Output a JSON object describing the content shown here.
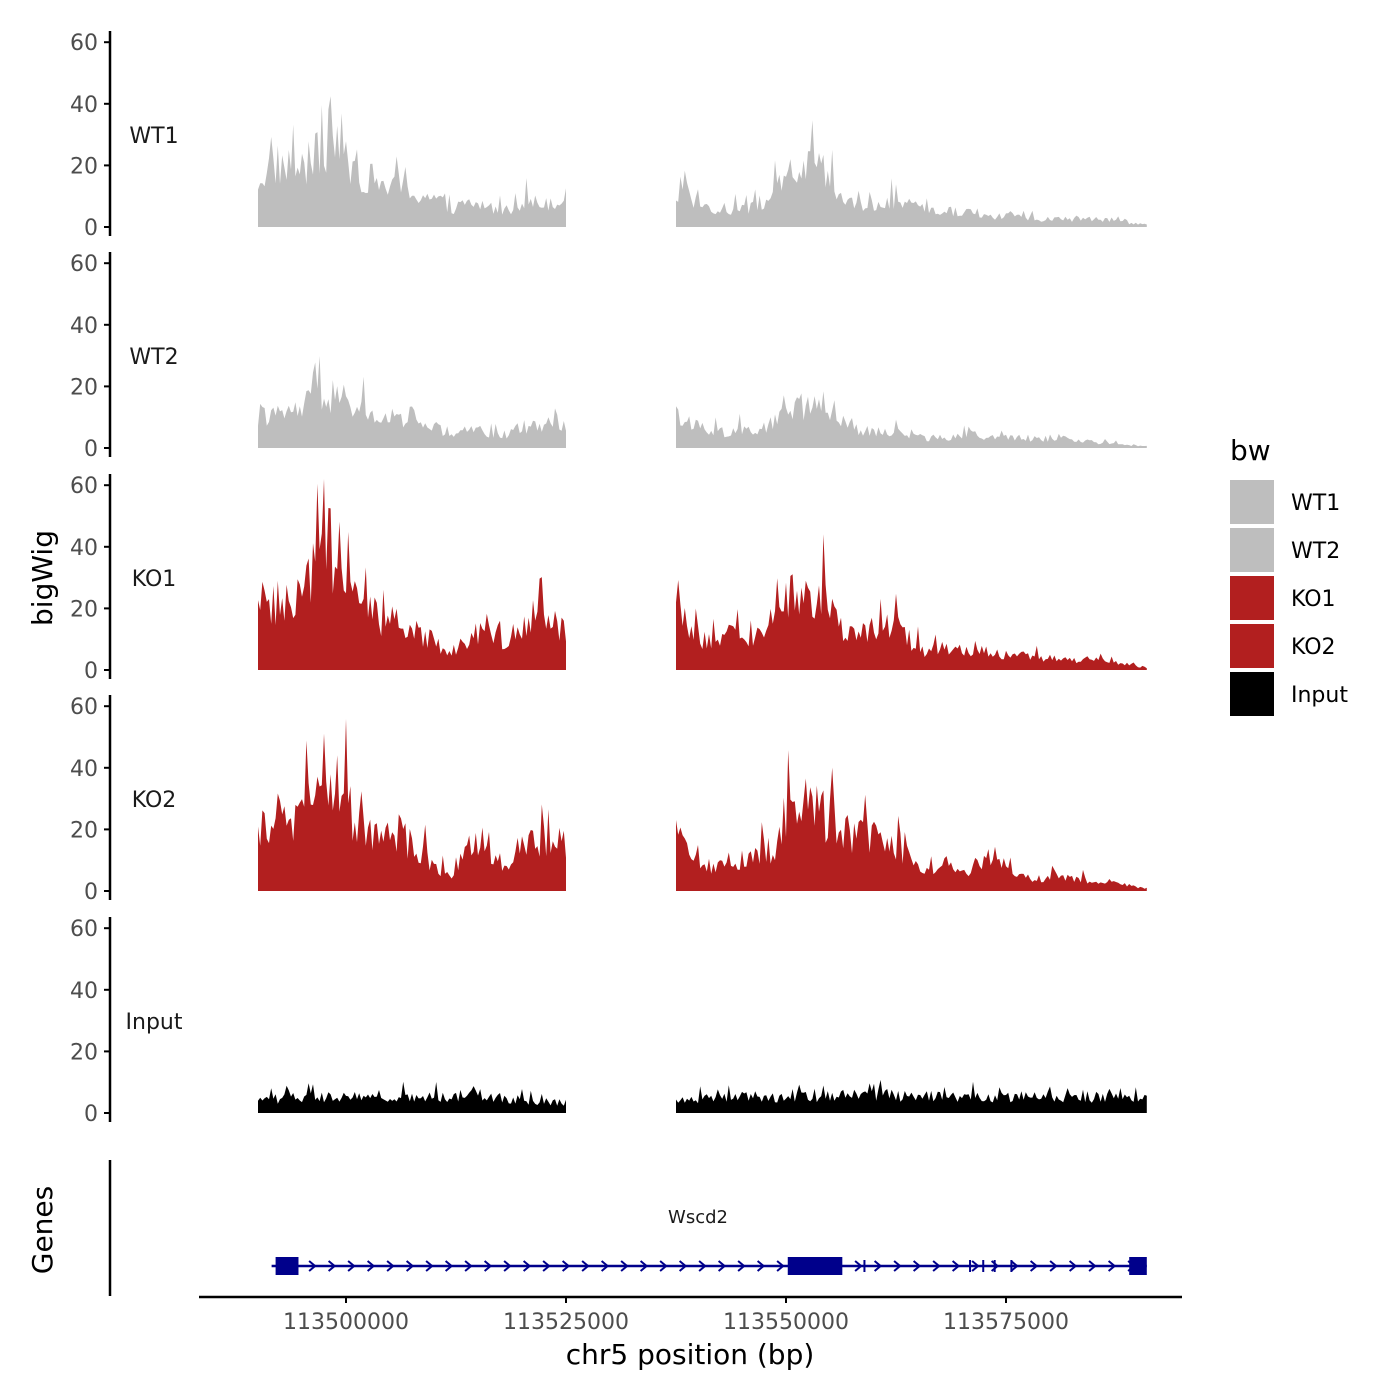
{
  "chart_data": {
    "type": "area",
    "ylabel": "bigWig",
    "xlabel": "chr5 position (bp)",
    "gene_track_label": "Genes",
    "ylim": [
      0,
      60
    ],
    "yticks": [
      0,
      20,
      40,
      60
    ],
    "xlim": [
      113485000,
      113594000
    ],
    "xticks": [
      113500000,
      113525000,
      113550000,
      113575000
    ],
    "xtick_labels": [
      "113500000",
      "113525000",
      "113550000",
      "113575000"
    ],
    "regions": [
      [
        113490000,
        113525000
      ],
      [
        113537500,
        113591000
      ]
    ],
    "bin_size_bp": 250,
    "series": [
      {
        "name": "WT1",
        "color": "#bebebe",
        "anchors": [
          {
            "x": 113490000,
            "y": 18
          },
          {
            "x": 113492000,
            "y": 24
          },
          {
            "x": 113495000,
            "y": 22
          },
          {
            "x": 113497000,
            "y": 28
          },
          {
            "x": 113499000,
            "y": 27
          },
          {
            "x": 113501000,
            "y": 22
          },
          {
            "x": 113503000,
            "y": 18
          },
          {
            "x": 113506000,
            "y": 14
          },
          {
            "x": 113509000,
            "y": 12
          },
          {
            "x": 113512000,
            "y": 7
          },
          {
            "x": 113514000,
            "y": 9
          },
          {
            "x": 113516000,
            "y": 8
          },
          {
            "x": 113518000,
            "y": 6
          },
          {
            "x": 113520000,
            "y": 10
          },
          {
            "x": 113522000,
            "y": 9
          },
          {
            "x": 113525000,
            "y": 11
          },
          {
            "x": 113537500,
            "y": 14
          },
          {
            "x": 113539500,
            "y": 9
          },
          {
            "x": 113541500,
            "y": 5
          },
          {
            "x": 113544000,
            "y": 7
          },
          {
            "x": 113546000,
            "y": 7
          },
          {
            "x": 113548500,
            "y": 12
          },
          {
            "x": 113550500,
            "y": 20
          },
          {
            "x": 113552500,
            "y": 23
          },
          {
            "x": 113554500,
            "y": 20
          },
          {
            "x": 113556500,
            "y": 9
          },
          {
            "x": 113559000,
            "y": 7
          },
          {
            "x": 113561500,
            "y": 10
          },
          {
            "x": 113564000,
            "y": 7
          },
          {
            "x": 113567000,
            "y": 6
          },
          {
            "x": 113570000,
            "y": 6
          },
          {
            "x": 113573000,
            "y": 4
          },
          {
            "x": 113576000,
            "y": 4
          },
          {
            "x": 113579000,
            "y": 3
          },
          {
            "x": 113582000,
            "y": 3
          },
          {
            "x": 113585000,
            "y": 3
          },
          {
            "x": 113588000,
            "y": 2
          },
          {
            "x": 113591000,
            "y": 1
          }
        ]
      },
      {
        "name": "WT2",
        "color": "#bebebe",
        "anchors": [
          {
            "x": 113490000,
            "y": 13
          },
          {
            "x": 113492000,
            "y": 12
          },
          {
            "x": 113494000,
            "y": 14
          },
          {
            "x": 113496000,
            "y": 17
          },
          {
            "x": 113498000,
            "y": 20
          },
          {
            "x": 113500000,
            "y": 18
          },
          {
            "x": 113502000,
            "y": 14
          },
          {
            "x": 113505000,
            "y": 10
          },
          {
            "x": 113508000,
            "y": 10
          },
          {
            "x": 113510000,
            "y": 8
          },
          {
            "x": 113512000,
            "y": 4
          },
          {
            "x": 113514000,
            "y": 7
          },
          {
            "x": 113516000,
            "y": 6
          },
          {
            "x": 113518000,
            "y": 5
          },
          {
            "x": 113520000,
            "y": 8
          },
          {
            "x": 113522000,
            "y": 9
          },
          {
            "x": 113525000,
            "y": 10
          },
          {
            "x": 113537500,
            "y": 12
          },
          {
            "x": 113539500,
            "y": 9
          },
          {
            "x": 113542000,
            "y": 6
          },
          {
            "x": 113545000,
            "y": 7
          },
          {
            "x": 113548500,
            "y": 9
          },
          {
            "x": 113550500,
            "y": 14
          },
          {
            "x": 113552500,
            "y": 17
          },
          {
            "x": 113554500,
            "y": 14
          },
          {
            "x": 113556500,
            "y": 8
          },
          {
            "x": 113559000,
            "y": 6
          },
          {
            "x": 113562000,
            "y": 6
          },
          {
            "x": 113565000,
            "y": 4
          },
          {
            "x": 113568000,
            "y": 4
          },
          {
            "x": 113571000,
            "y": 5
          },
          {
            "x": 113574000,
            "y": 4
          },
          {
            "x": 113577000,
            "y": 4
          },
          {
            "x": 113580000,
            "y": 3
          },
          {
            "x": 113583000,
            "y": 3
          },
          {
            "x": 113586000,
            "y": 2
          },
          {
            "x": 113589000,
            "y": 1
          },
          {
            "x": 113591000,
            "y": 1
          }
        ]
      },
      {
        "name": "KO1",
        "color": "#b21f1f",
        "anchors": [
          {
            "x": 113490000,
            "y": 22
          },
          {
            "x": 113492000,
            "y": 26
          },
          {
            "x": 113494000,
            "y": 23
          },
          {
            "x": 113496000,
            "y": 34
          },
          {
            "x": 113497500,
            "y": 46
          },
          {
            "x": 113499000,
            "y": 42
          },
          {
            "x": 113500500,
            "y": 30
          },
          {
            "x": 113502000,
            "y": 22
          },
          {
            "x": 113504000,
            "y": 20
          },
          {
            "x": 113506000,
            "y": 17
          },
          {
            "x": 113508000,
            "y": 14
          },
          {
            "x": 113510000,
            "y": 11
          },
          {
            "x": 113512000,
            "y": 7
          },
          {
            "x": 113514000,
            "y": 12
          },
          {
            "x": 113516000,
            "y": 18
          },
          {
            "x": 113518000,
            "y": 10
          },
          {
            "x": 113520000,
            "y": 17
          },
          {
            "x": 113522000,
            "y": 19
          },
          {
            "x": 113525000,
            "y": 16
          },
          {
            "x": 113537500,
            "y": 21
          },
          {
            "x": 113539500,
            "y": 14
          },
          {
            "x": 113541500,
            "y": 10
          },
          {
            "x": 113543500,
            "y": 13
          },
          {
            "x": 113546000,
            "y": 12
          },
          {
            "x": 113548500,
            "y": 15
          },
          {
            "x": 113550500,
            "y": 28
          },
          {
            "x": 113552500,
            "y": 30
          },
          {
            "x": 113554500,
            "y": 28
          },
          {
            "x": 113556500,
            "y": 13
          },
          {
            "x": 113558500,
            "y": 15
          },
          {
            "x": 113561000,
            "y": 17
          },
          {
            "x": 113563000,
            "y": 14
          },
          {
            "x": 113566000,
            "y": 7
          },
          {
            "x": 113569000,
            "y": 8
          },
          {
            "x": 113572000,
            "y": 7
          },
          {
            "x": 113575000,
            "y": 6
          },
          {
            "x": 113578000,
            "y": 5
          },
          {
            "x": 113581000,
            "y": 4
          },
          {
            "x": 113584000,
            "y": 4
          },
          {
            "x": 113587000,
            "y": 3
          },
          {
            "x": 113591000,
            "y": 1
          }
        ]
      },
      {
        "name": "KO2",
        "color": "#b21f1f",
        "anchors": [
          {
            "x": 113490000,
            "y": 23
          },
          {
            "x": 113492000,
            "y": 28
          },
          {
            "x": 113494000,
            "y": 26
          },
          {
            "x": 113496000,
            "y": 33
          },
          {
            "x": 113497500,
            "y": 48
          },
          {
            "x": 113499000,
            "y": 40
          },
          {
            "x": 113500500,
            "y": 30
          },
          {
            "x": 113502000,
            "y": 24
          },
          {
            "x": 113504000,
            "y": 20
          },
          {
            "x": 113506000,
            "y": 22
          },
          {
            "x": 113508000,
            "y": 16
          },
          {
            "x": 113510000,
            "y": 10
          },
          {
            "x": 113512000,
            "y": 6
          },
          {
            "x": 113514000,
            "y": 16
          },
          {
            "x": 113516000,
            "y": 18
          },
          {
            "x": 113518000,
            "y": 10
          },
          {
            "x": 113520000,
            "y": 16
          },
          {
            "x": 113522000,
            "y": 19
          },
          {
            "x": 113525000,
            "y": 18
          },
          {
            "x": 113537500,
            "y": 24
          },
          {
            "x": 113539500,
            "y": 14
          },
          {
            "x": 113541500,
            "y": 10
          },
          {
            "x": 113544000,
            "y": 12
          },
          {
            "x": 113546500,
            "y": 13
          },
          {
            "x": 113548500,
            "y": 16
          },
          {
            "x": 113550500,
            "y": 30
          },
          {
            "x": 113552500,
            "y": 33
          },
          {
            "x": 113554500,
            "y": 28
          },
          {
            "x": 113556500,
            "y": 22
          },
          {
            "x": 113558500,
            "y": 21
          },
          {
            "x": 113561000,
            "y": 20
          },
          {
            "x": 113563000,
            "y": 17
          },
          {
            "x": 113565500,
            "y": 7
          },
          {
            "x": 113568000,
            "y": 12
          },
          {
            "x": 113570500,
            "y": 8
          },
          {
            "x": 113573000,
            "y": 12
          },
          {
            "x": 113575000,
            "y": 8
          },
          {
            "x": 113578000,
            "y": 5
          },
          {
            "x": 113581000,
            "y": 5
          },
          {
            "x": 113584000,
            "y": 4
          },
          {
            "x": 113587000,
            "y": 3
          },
          {
            "x": 113591000,
            "y": 1
          }
        ]
      },
      {
        "name": "Input",
        "color": "#000000",
        "anchors": [
          {
            "x": 113490000,
            "y": 5
          },
          {
            "x": 113495000,
            "y": 6
          },
          {
            "x": 113500000,
            "y": 6
          },
          {
            "x": 113505000,
            "y": 6
          },
          {
            "x": 113510000,
            "y": 6
          },
          {
            "x": 113515000,
            "y": 7
          },
          {
            "x": 113520000,
            "y": 5
          },
          {
            "x": 113525000,
            "y": 4
          },
          {
            "x": 113537500,
            "y": 5
          },
          {
            "x": 113545000,
            "y": 6
          },
          {
            "x": 113552000,
            "y": 6
          },
          {
            "x": 113560000,
            "y": 7
          },
          {
            "x": 113568000,
            "y": 6
          },
          {
            "x": 113576000,
            "y": 6
          },
          {
            "x": 113584000,
            "y": 6
          },
          {
            "x": 113591000,
            "y": 6
          }
        ]
      }
    ],
    "gene": {
      "name": "Wscd2",
      "strand": "+",
      "color": "#00008b",
      "start": 113492000,
      "end": 113591000,
      "exons": [
        {
          "start": 113492000,
          "end": 113494600,
          "kind": "thick"
        },
        {
          "start": 113550200,
          "end": 113556400,
          "kind": "thick"
        },
        {
          "start": 113558800,
          "end": 113559000,
          "kind": "thin"
        },
        {
          "start": 113570800,
          "end": 113571000,
          "kind": "thin"
        },
        {
          "start": 113572300,
          "end": 113572500,
          "kind": "thin"
        },
        {
          "start": 113573600,
          "end": 113573800,
          "kind": "thin"
        },
        {
          "start": 113575500,
          "end": 113575700,
          "kind": "thin"
        },
        {
          "start": 113589000,
          "end": 113591000,
          "kind": "thick"
        }
      ]
    },
    "legend": {
      "title": "bw",
      "position": "right",
      "items": [
        {
          "label": "WT1",
          "color": "#bebebe"
        },
        {
          "label": "WT2",
          "color": "#bebebe"
        },
        {
          "label": "KO1",
          "color": "#b21f1f"
        },
        {
          "label": "KO2",
          "color": "#b21f1f"
        },
        {
          "label": "Input",
          "color": "#000000"
        }
      ]
    }
  }
}
